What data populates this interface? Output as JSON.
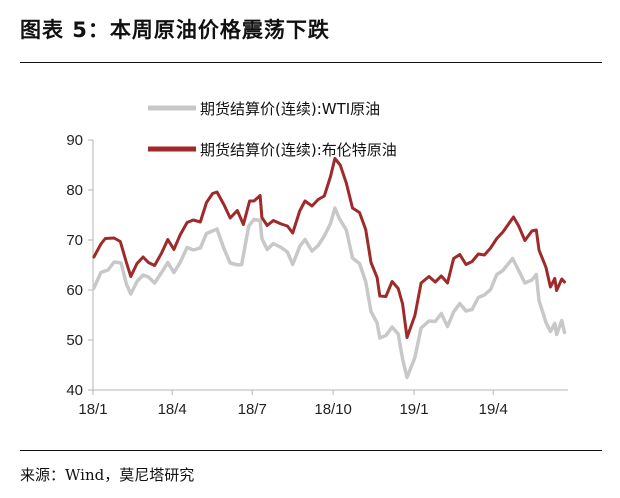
{
  "header": {
    "title": "图表 5：本周原油价格震荡下跌"
  },
  "footer": {
    "source": "来源：Wind，莫尼塔研究"
  },
  "chart_data": {
    "type": "line",
    "title": "",
    "xlabel": "",
    "ylabel": "",
    "ylim": [
      40,
      90
    ],
    "yticks": [
      "40",
      "50",
      "60",
      "70",
      "80",
      "90"
    ],
    "xlim": [
      "2018-01-01",
      "2019-06-25"
    ],
    "xticks": [
      {
        "label": "18/1",
        "date": "2018-01-01"
      },
      {
        "label": "18/4",
        "date": "2018-04-01"
      },
      {
        "label": "18/7",
        "date": "2018-07-01"
      },
      {
        "label": "18/10",
        "date": "2018-10-01"
      },
      {
        "label": "19/1",
        "date": "2019-01-01"
      },
      {
        "label": "19/4",
        "date": "2019-04-01"
      }
    ],
    "grid": false,
    "legend_position": "top-center",
    "series": [
      {
        "name": "期货结算价(连续):WTI原油",
        "color": "#c8c8c8",
        "points": [
          [
            "2018-01-02",
            60.4
          ],
          [
            "2018-01-10",
            63.5
          ],
          [
            "2018-01-18",
            64.0
          ],
          [
            "2018-01-25",
            65.6
          ],
          [
            "2018-02-02",
            65.4
          ],
          [
            "2018-02-08",
            61.2
          ],
          [
            "2018-02-13",
            59.2
          ],
          [
            "2018-02-20",
            61.7
          ],
          [
            "2018-02-27",
            63.0
          ],
          [
            "2018-03-05",
            62.6
          ],
          [
            "2018-03-12",
            61.4
          ],
          [
            "2018-03-20",
            63.5
          ],
          [
            "2018-03-27",
            65.5
          ],
          [
            "2018-04-03",
            63.5
          ],
          [
            "2018-04-10",
            65.5
          ],
          [
            "2018-04-18",
            68.5
          ],
          [
            "2018-04-25",
            68.0
          ],
          [
            "2018-05-03",
            68.4
          ],
          [
            "2018-05-10",
            71.3
          ],
          [
            "2018-05-22",
            72.2
          ],
          [
            "2018-05-30",
            68.2
          ],
          [
            "2018-06-06",
            65.4
          ],
          [
            "2018-06-15",
            65.0
          ],
          [
            "2018-06-19",
            65.1
          ],
          [
            "2018-06-27",
            72.8
          ],
          [
            "2018-07-03",
            74.1
          ],
          [
            "2018-07-10",
            73.9
          ],
          [
            "2018-07-12",
            70.3
          ],
          [
            "2018-07-18",
            68.1
          ],
          [
            "2018-07-25",
            69.3
          ],
          [
            "2018-08-03",
            68.5
          ],
          [
            "2018-08-10",
            67.6
          ],
          [
            "2018-08-16",
            65.1
          ],
          [
            "2018-08-24",
            68.7
          ],
          [
            "2018-08-30",
            70.1
          ],
          [
            "2018-09-07",
            67.8
          ],
          [
            "2018-09-14",
            68.9
          ],
          [
            "2018-09-21",
            70.8
          ],
          [
            "2018-09-28",
            73.3
          ],
          [
            "2018-10-03",
            76.4
          ],
          [
            "2018-10-08",
            74.3
          ],
          [
            "2018-10-16",
            72.0
          ],
          [
            "2018-10-23",
            66.4
          ],
          [
            "2018-10-31",
            65.3
          ],
          [
            "2018-11-07",
            61.7
          ],
          [
            "2018-11-13",
            55.7
          ],
          [
            "2018-11-20",
            53.4
          ],
          [
            "2018-11-23",
            50.4
          ],
          [
            "2018-11-30",
            50.9
          ],
          [
            "2018-12-07",
            52.6
          ],
          [
            "2018-12-14",
            51.2
          ],
          [
            "2018-12-19",
            46.2
          ],
          [
            "2018-12-24",
            42.5
          ],
          [
            "2019-01-02",
            46.5
          ],
          [
            "2019-01-09",
            52.4
          ],
          [
            "2019-01-18",
            53.8
          ],
          [
            "2019-01-25",
            53.7
          ],
          [
            "2019-02-01",
            55.3
          ],
          [
            "2019-02-08",
            52.7
          ],
          [
            "2019-02-15",
            55.6
          ],
          [
            "2019-02-22",
            57.3
          ],
          [
            "2019-03-01",
            55.8
          ],
          [
            "2019-03-08",
            56.1
          ],
          [
            "2019-03-15",
            58.5
          ],
          [
            "2019-03-22",
            59.0
          ],
          [
            "2019-03-29",
            60.1
          ],
          [
            "2019-04-05",
            63.1
          ],
          [
            "2019-04-12",
            63.9
          ],
          [
            "2019-04-23",
            66.3
          ],
          [
            "2019-04-30",
            63.9
          ],
          [
            "2019-05-07",
            61.4
          ],
          [
            "2019-05-15",
            62.0
          ],
          [
            "2019-05-20",
            63.1
          ],
          [
            "2019-05-23",
            57.9
          ],
          [
            "2019-05-31",
            53.5
          ],
          [
            "2019-06-05",
            51.7
          ],
          [
            "2019-06-10",
            53.3
          ],
          [
            "2019-06-12",
            51.1
          ],
          [
            "2019-06-18",
            53.9
          ],
          [
            "2019-06-21",
            51.5
          ]
        ]
      },
      {
        "name": "期货结算价(连续):布伦特原油",
        "color": "#9e2a2a",
        "points": [
          [
            "2018-01-02",
            66.6
          ],
          [
            "2018-01-10",
            69.2
          ],
          [
            "2018-01-15",
            70.3
          ],
          [
            "2018-01-25",
            70.4
          ],
          [
            "2018-02-01",
            69.7
          ],
          [
            "2018-02-08",
            65.5
          ],
          [
            "2018-02-13",
            62.7
          ],
          [
            "2018-02-20",
            65.3
          ],
          [
            "2018-02-27",
            66.6
          ],
          [
            "2018-03-05",
            65.5
          ],
          [
            "2018-03-12",
            64.9
          ],
          [
            "2018-03-20",
            67.4
          ],
          [
            "2018-03-27",
            70.1
          ],
          [
            "2018-04-03",
            68.1
          ],
          [
            "2018-04-10",
            71.0
          ],
          [
            "2018-04-18",
            73.5
          ],
          [
            "2018-04-25",
            74.0
          ],
          [
            "2018-05-03",
            73.6
          ],
          [
            "2018-05-10",
            77.5
          ],
          [
            "2018-05-17",
            79.3
          ],
          [
            "2018-05-22",
            79.6
          ],
          [
            "2018-05-30",
            77.0
          ],
          [
            "2018-06-06",
            74.4
          ],
          [
            "2018-06-14",
            75.9
          ],
          [
            "2018-06-21",
            73.1
          ],
          [
            "2018-06-28",
            77.8
          ],
          [
            "2018-07-03",
            77.8
          ],
          [
            "2018-07-10",
            78.9
          ],
          [
            "2018-07-12",
            74.5
          ],
          [
            "2018-07-18",
            72.9
          ],
          [
            "2018-07-25",
            73.9
          ],
          [
            "2018-08-03",
            73.2
          ],
          [
            "2018-08-10",
            72.8
          ],
          [
            "2018-08-16",
            71.4
          ],
          [
            "2018-08-24",
            75.8
          ],
          [
            "2018-08-30",
            77.8
          ],
          [
            "2018-09-07",
            76.8
          ],
          [
            "2018-09-14",
            78.1
          ],
          [
            "2018-09-21",
            78.8
          ],
          [
            "2018-09-28",
            82.7
          ],
          [
            "2018-10-03",
            86.3
          ],
          [
            "2018-10-09",
            85.0
          ],
          [
            "2018-10-16",
            81.4
          ],
          [
            "2018-10-23",
            76.4
          ],
          [
            "2018-10-31",
            75.5
          ],
          [
            "2018-11-07",
            72.1
          ],
          [
            "2018-11-13",
            65.5
          ],
          [
            "2018-11-20",
            62.5
          ],
          [
            "2018-11-23",
            58.8
          ],
          [
            "2018-11-30",
            58.7
          ],
          [
            "2018-12-07",
            61.7
          ],
          [
            "2018-12-14",
            60.3
          ],
          [
            "2018-12-19",
            57.2
          ],
          [
            "2018-12-24",
            50.5
          ],
          [
            "2019-01-02",
            54.9
          ],
          [
            "2019-01-09",
            61.4
          ],
          [
            "2019-01-18",
            62.7
          ],
          [
            "2019-01-25",
            61.6
          ],
          [
            "2019-02-01",
            62.8
          ],
          [
            "2019-02-08",
            61.4
          ],
          [
            "2019-02-15",
            66.3
          ],
          [
            "2019-02-22",
            67.1
          ],
          [
            "2019-03-01",
            65.1
          ],
          [
            "2019-03-08",
            65.7
          ],
          [
            "2019-03-15",
            67.2
          ],
          [
            "2019-03-22",
            67.0
          ],
          [
            "2019-03-29",
            68.4
          ],
          [
            "2019-04-05",
            70.3
          ],
          [
            "2019-04-12",
            71.6
          ],
          [
            "2019-04-24",
            74.6
          ],
          [
            "2019-04-30",
            72.8
          ],
          [
            "2019-05-07",
            69.9
          ],
          [
            "2019-05-15",
            71.8
          ],
          [
            "2019-05-20",
            72.0
          ],
          [
            "2019-05-23",
            68.0
          ],
          [
            "2019-05-31",
            64.5
          ],
          [
            "2019-06-05",
            60.6
          ],
          [
            "2019-06-10",
            62.3
          ],
          [
            "2019-06-12",
            59.9
          ],
          [
            "2019-06-18",
            62.2
          ],
          [
            "2019-06-21",
            61.6
          ]
        ]
      }
    ]
  }
}
